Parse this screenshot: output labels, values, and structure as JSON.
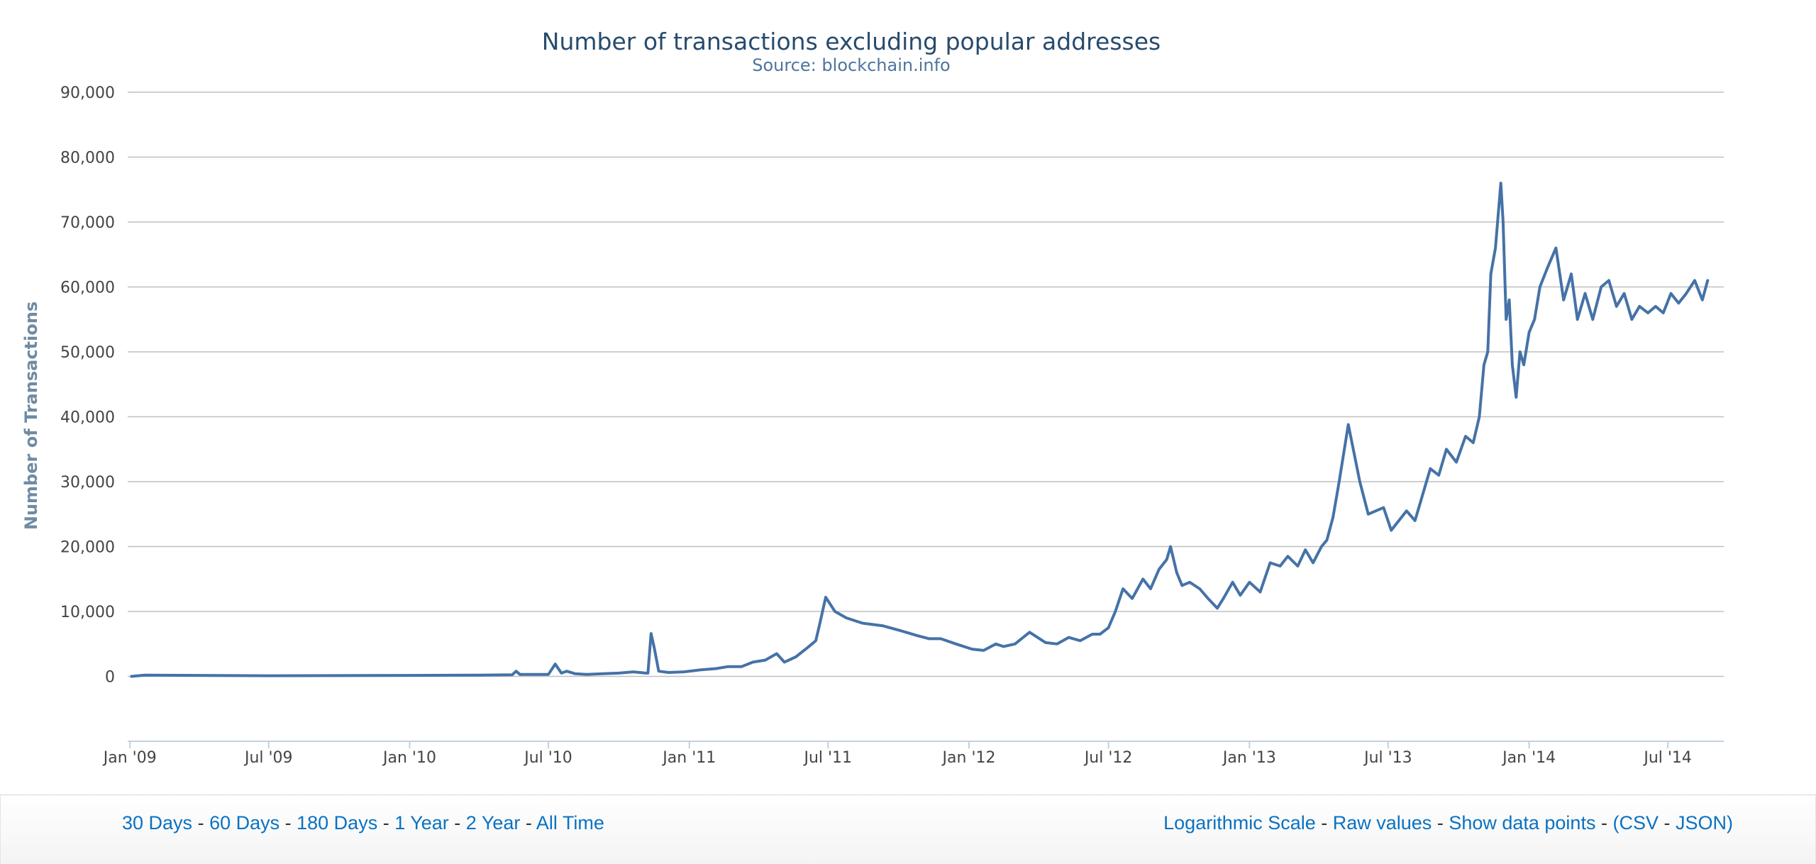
{
  "chart_data": {
    "type": "line",
    "title": "Number of transactions excluding popular addresses",
    "subtitle": "Source: blockchain.info",
    "ylabel": "Number of Transactions",
    "xlabel": "",
    "ylim": [
      -10000,
      90000
    ],
    "yticks": [
      "0",
      "10,000",
      "20,000",
      "30,000",
      "40,000",
      "50,000",
      "60,000",
      "70,000",
      "80,000",
      "90,000"
    ],
    "ytick_values": [
      0,
      10000,
      20000,
      30000,
      40000,
      50000,
      60000,
      70000,
      80000,
      90000
    ],
    "xlim": [
      "2008-12-29",
      "2014-09-12"
    ],
    "xticks": [
      {
        "label": "Jan '09",
        "date": "2009-01-01"
      },
      {
        "label": "Jul '09",
        "date": "2009-07-01"
      },
      {
        "label": "Jan '10",
        "date": "2010-01-01"
      },
      {
        "label": "Jul '10",
        "date": "2010-07-01"
      },
      {
        "label": "Jan '11",
        "date": "2011-01-01"
      },
      {
        "label": "Jul '11",
        "date": "2011-07-01"
      },
      {
        "label": "Jan '12",
        "date": "2012-01-01"
      },
      {
        "label": "Jul '12",
        "date": "2012-07-01"
      },
      {
        "label": "Jan '13",
        "date": "2013-01-01"
      },
      {
        "label": "Jul '13",
        "date": "2013-07-01"
      },
      {
        "label": "Jan '14",
        "date": "2014-01-01"
      },
      {
        "label": "Jul '14",
        "date": "2014-07-01"
      }
    ],
    "grid": true,
    "legend": "none",
    "series": [
      {
        "color": "#4572a7",
        "x": [
          "2009-01-03",
          "2009-01-20",
          "2009-04-01",
          "2009-07-01",
          "2009-10-01",
          "2010-01-01",
          "2010-04-01",
          "2010-05-15",
          "2010-05-20",
          "2010-05-25",
          "2010-06-01",
          "2010-07-01",
          "2010-07-10",
          "2010-07-18",
          "2010-07-25",
          "2010-08-05",
          "2010-08-20",
          "2010-09-10",
          "2010-10-01",
          "2010-10-20",
          "2010-11-05",
          "2010-11-08",
          "2010-11-12",
          "2010-11-16",
          "2010-11-22",
          "2010-12-05",
          "2010-12-25",
          "2011-01-15",
          "2011-02-05",
          "2011-02-20",
          "2011-03-10",
          "2011-03-25",
          "2011-04-10",
          "2011-04-25",
          "2011-05-05",
          "2011-05-20",
          "2011-06-05",
          "2011-06-15",
          "2011-06-20",
          "2011-06-28",
          "2011-07-10",
          "2011-07-25",
          "2011-08-15",
          "2011-09-10",
          "2011-10-05",
          "2011-10-25",
          "2011-11-10",
          "2011-11-25",
          "2011-12-15",
          "2012-01-05",
          "2012-01-20",
          "2012-02-05",
          "2012-02-15",
          "2012-03-01",
          "2012-03-20",
          "2012-04-10",
          "2012-04-25",
          "2012-05-10",
          "2012-05-25",
          "2012-06-10",
          "2012-06-20",
          "2012-07-01",
          "2012-07-10",
          "2012-07-20",
          "2012-08-01",
          "2012-08-15",
          "2012-08-25",
          "2012-09-05",
          "2012-09-15",
          "2012-09-20",
          "2012-09-28",
          "2012-10-05",
          "2012-10-15",
          "2012-10-28",
          "2012-11-08",
          "2012-11-20",
          "2012-11-28",
          "2012-12-10",
          "2012-12-20",
          "2013-01-01",
          "2013-01-15",
          "2013-01-28",
          "2013-02-10",
          "2013-02-20",
          "2013-03-05",
          "2013-03-15",
          "2013-03-25",
          "2013-04-05",
          "2013-04-12",
          "2013-04-20",
          "2013-04-28",
          "2013-05-10",
          "2013-05-25",
          "2013-06-05",
          "2013-06-15",
          "2013-06-25",
          "2013-07-05",
          "2013-07-15",
          "2013-07-25",
          "2013-08-05",
          "2013-08-15",
          "2013-08-25",
          "2013-09-05",
          "2013-09-15",
          "2013-09-28",
          "2013-10-10",
          "2013-10-20",
          "2013-10-28",
          "2013-11-03",
          "2013-11-08",
          "2013-11-12",
          "2013-11-18",
          "2013-11-25",
          "2013-11-28",
          "2013-12-02",
          "2013-12-06",
          "2013-12-10",
          "2013-12-15",
          "2013-12-20",
          "2013-12-25",
          "2014-01-01",
          "2014-01-08",
          "2014-01-15",
          "2014-01-25",
          "2014-02-05",
          "2014-02-15",
          "2014-02-25",
          "2014-03-05",
          "2014-03-15",
          "2014-03-25",
          "2014-04-05",
          "2014-04-15",
          "2014-04-25",
          "2014-05-05",
          "2014-05-15",
          "2014-05-25",
          "2014-06-05",
          "2014-06-15",
          "2014-06-25",
          "2014-07-05",
          "2014-07-15",
          "2014-07-25",
          "2014-08-05",
          "2014-08-15",
          "2014-08-22"
        ],
        "y": [
          0,
          200,
          150,
          100,
          120,
          150,
          200,
          250,
          800,
          300,
          300,
          300,
          1900,
          500,
          800,
          400,
          300,
          400,
          500,
          700,
          500,
          500,
          6600,
          4500,
          800,
          600,
          700,
          1000,
          1200,
          1500,
          1500,
          2200,
          2500,
          3500,
          2200,
          3000,
          4500,
          5500,
          8000,
          12200,
          10000,
          9000,
          8200,
          7800,
          7000,
          6300,
          5800,
          5800,
          5000,
          4200,
          4000,
          5000,
          4600,
          5000,
          6800,
          5200,
          5000,
          6000,
          5500,
          6500,
          6500,
          7500,
          10000,
          13500,
          12000,
          15000,
          13500,
          16500,
          18000,
          20000,
          16000,
          14000,
          14500,
          13500,
          12000,
          10500,
          12000,
          14500,
          12500,
          14500,
          13000,
          17500,
          17000,
          18500,
          17000,
          19500,
          17500,
          20000,
          21000,
          24500,
          30000,
          38800,
          30000,
          25000,
          25500,
          26000,
          22500,
          24000,
          25500,
          24000,
          28000,
          32000,
          31000,
          35000,
          33000,
          37000,
          36000,
          40000,
          48000,
          50000,
          62000,
          66000,
          76000,
          70000,
          55000,
          58000,
          48000,
          43000,
          50000,
          48000,
          53000,
          55000,
          60000,
          63000,
          66000,
          58000,
          62000,
          55000,
          59000,
          55000,
          60000,
          61000,
          57000,
          59000,
          55000,
          57000,
          56000,
          57000,
          56000,
          59000,
          57500,
          59000,
          61000,
          58000,
          61000
        ]
      }
    ]
  },
  "controls": {
    "range_links": [
      {
        "label": "30 Days"
      },
      {
        "label": "60 Days"
      },
      {
        "label": "180 Days"
      },
      {
        "label": "1 Year"
      },
      {
        "label": "2 Year"
      },
      {
        "label": "All Time"
      }
    ],
    "separator": " - ",
    "option_links": [
      {
        "label": "Logarithmic Scale"
      },
      {
        "label": "Raw values"
      },
      {
        "label": "Show data points"
      }
    ],
    "export_open": "(",
    "export_csv": "CSV",
    "export_json": "JSON",
    "export_close": ")"
  }
}
